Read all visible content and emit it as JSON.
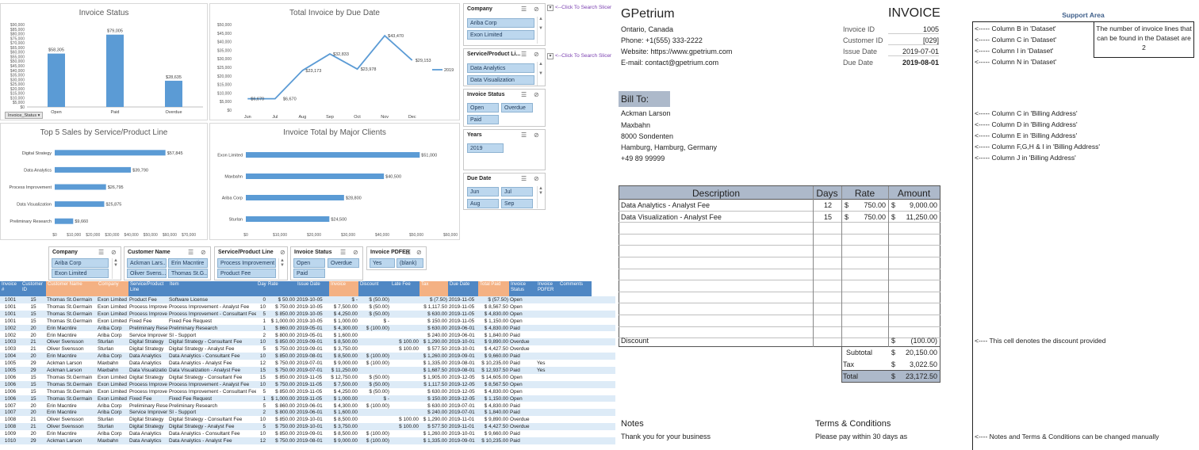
{
  "charts_panel": {
    "invoice_status": {
      "title": "Invoice Status",
      "filter_button": "Invoice_Status",
      "yticks": [
        "$0",
        "$5,000",
        "$10,000",
        "$15,000",
        "$20,000",
        "$25,000",
        "$30,000",
        "$35,000",
        "$40,000",
        "$45,000",
        "$50,000",
        "$55,000",
        "$60,000",
        "$65,000",
        "$70,000",
        "$75,000",
        "$80,000",
        "$85,000",
        "$90,000"
      ],
      "data_labels": [
        "$58,305",
        "$79,005",
        "$28,635"
      ],
      "categories": [
        "Open",
        "Paid",
        "Overdue"
      ]
    },
    "due_date": {
      "title": "Total Invoice by Due Date",
      "yticks": [
        "$0",
        "$5,000",
        "$10,000",
        "$15,000",
        "$20,000",
        "$25,000",
        "$30,000",
        "$35,000",
        "$40,000",
        "$45,000",
        "$50,000"
      ],
      "data_labels": [
        "$6,670",
        "$6,670",
        "$23,173",
        "$32,833",
        "$23,978",
        "$43,470",
        "$29,153"
      ],
      "categories": [
        "Jun",
        "Jul",
        "Aug",
        "Sep",
        "Oct",
        "Nov",
        "Dec"
      ],
      "legend": "2019"
    },
    "top5": {
      "title": "Top 5 Sales by Service/Product Line",
      "categories": [
        "Digital Strategy",
        "Data Analytics",
        "Process Improvement",
        "Data Visualization",
        "Preliminary Research"
      ],
      "data_labels": [
        "$57,845",
        "$39,790",
        "$26,795",
        "$25,875",
        "$9,660"
      ],
      "xticks": [
        "$0",
        "$10,000",
        "$20,000",
        "$30,000",
        "$40,000",
        "$50,000",
        "$60,000",
        "$70,000"
      ]
    },
    "clients": {
      "title": "Invoice Total by Major Clients",
      "categories": [
        "Exon Limited",
        "Maxbahn",
        "Ariba Corp",
        "Sturlan"
      ],
      "data_labels": [
        "$51,000",
        "$40,500",
        "$28,800",
        "$24,500"
      ],
      "xticks": [
        "$0",
        "$10,000",
        "$20,000",
        "$30,000",
        "$40,000",
        "$50,000",
        "$60,000"
      ]
    }
  },
  "chart_data": [
    {
      "type": "bar",
      "title": "Invoice Status",
      "categories": [
        "Open",
        "Paid",
        "Overdue"
      ],
      "values": [
        58305,
        79005,
        28635
      ],
      "ylim": [
        0,
        90000
      ],
      "xlabel": "",
      "ylabel": ""
    },
    {
      "type": "line",
      "title": "Total Invoice by Due Date",
      "categories": [
        "Jun",
        "Jul",
        "Aug",
        "Sep",
        "Oct",
        "Nov",
        "Dec"
      ],
      "series": [
        {
          "name": "2019",
          "values": [
            6670,
            6670,
            23173,
            32833,
            23978,
            43470,
            29153
          ]
        }
      ],
      "ylim": [
        0,
        50000
      ],
      "legend": "right"
    },
    {
      "type": "bar",
      "orientation": "horizontal",
      "title": "Top 5 Sales by Service/Product Line",
      "categories": [
        "Digital Strategy",
        "Data Analytics",
        "Process Improvement",
        "Data Visualization",
        "Preliminary Research"
      ],
      "values": [
        57845,
        39790,
        26795,
        25875,
        9660
      ],
      "xlim": [
        0,
        70000
      ]
    },
    {
      "type": "bar",
      "orientation": "horizontal",
      "title": "Invoice Total by Major Clients",
      "categories": [
        "Exon Limited",
        "Maxbahn",
        "Ariba Corp",
        "Sturlan"
      ],
      "values": [
        51000,
        40500,
        28800,
        24500
      ],
      "xlim": [
        0,
        60000
      ]
    }
  ],
  "right_slicers": {
    "company": {
      "title": "Company",
      "items": [
        "Ariba Corp",
        "Exon Limited"
      ]
    },
    "service": {
      "title": "Service/Product Li...",
      "items": [
        "Data Analytics",
        "Data Visualization"
      ]
    },
    "status": {
      "title": "Invoice Status",
      "items": [
        "Open",
        "Overdue",
        "Paid"
      ]
    },
    "years": {
      "title": "Years",
      "items": [
        "2019"
      ]
    },
    "due": {
      "title": "Due Date",
      "items": [
        "Jun",
        "Jul",
        "Aug",
        "Sep"
      ]
    },
    "hint1": "<--Click To Search Slicer",
    "hint2": "<--Click To Search Slicer"
  },
  "table_slicers": {
    "company": {
      "title": "Company",
      "items": [
        "Ariba Corp",
        "Exon Limited"
      ]
    },
    "customer": {
      "title": "Customer Name",
      "items": [
        "Ackman Lars...",
        "Erin Macntire",
        "Oliver Svens...",
        "Thomas St.G..."
      ]
    },
    "service": {
      "title": "Service/Product Line",
      "items": [
        "Process Improvement",
        "Product Fee"
      ]
    },
    "status": {
      "title": "Invoice Status",
      "items": [
        "Open",
        "Overdue",
        "Paid"
      ]
    },
    "pdfer": {
      "title": "Invoice PDFER",
      "items": [
        "Yes",
        "(blank)"
      ]
    }
  },
  "table": {
    "headers": [
      "Invoice #",
      "Customer ID",
      "Customer Name",
      "Company",
      "Service/Product Line",
      "Item",
      "Days",
      "Rate",
      "Issue Date",
      "Invoice",
      "Discount",
      "Late Fee",
      "Tax",
      "Due Date",
      "Total Paid",
      "Invoice Status",
      "Invoice PDFER",
      "Comments"
    ],
    "rows": [
      [
        "1001",
        "15",
        "Thomas St.Germain",
        "Exon Limited",
        "Product Fee",
        "Software License",
        "0",
        "$ 50.00",
        "2019-10-05",
        "$ -",
        "$ (50.00)",
        "",
        "$ (7.50)",
        "2019-11-05",
        "$ (57.50)",
        "Open",
        "",
        ""
      ],
      [
        "1001",
        "15",
        "Thomas St.Germain",
        "Exon Limited",
        "Process Improve",
        "Process Improvement - Analyst Fee",
        "10",
        "$ 750.00",
        "2019-10-05",
        "$ 7,500.00",
        "$ (50.00)",
        "",
        "$ 1,117.50",
        "2019-11-05",
        "$ 8,567.50",
        "Open",
        "",
        ""
      ],
      [
        "1001",
        "15",
        "Thomas St.Germain",
        "Exon Limited",
        "Process Improve",
        "Process Improvement - Consultant Fee",
        "5",
        "$ 850.00",
        "2019-10-05",
        "$ 4,250.00",
        "$ (50.00)",
        "",
        "$ 630.00",
        "2019-11-05",
        "$ 4,830.00",
        "Open",
        "",
        ""
      ],
      [
        "1001",
        "15",
        "Thomas St.Germain",
        "Exon Limited",
        "Fixed Fee",
        "Fixed Fee Request",
        "1",
        "$ 1,000.00",
        "2019-10-05",
        "$ 1,000.00",
        "$ -",
        "",
        "$ 150.00",
        "2019-11-05",
        "$ 1,150.00",
        "Open",
        "",
        ""
      ],
      [
        "1002",
        "20",
        "Erin Macntire",
        "Ariba Corp",
        "Preliminary Rese",
        "Preliminary Research",
        "1",
        "$ 860.00",
        "2019-05-01",
        "$ 4,300.00",
        "$ (100.00)",
        "",
        "$ 630.00",
        "2019-06-01",
        "$ 4,830.00",
        "Paid",
        "",
        ""
      ],
      [
        "1002",
        "20",
        "Erin Macntire",
        "Ariba Corp",
        "Service Improver",
        "SI - Support",
        "2",
        "$ 800.00",
        "2019-05-01",
        "$ 1,600.00",
        "",
        "",
        "$ 240.00",
        "2019-06-01",
        "$ 1,840.00",
        "Paid",
        "",
        ""
      ],
      [
        "1003",
        "21",
        "Oliver Svensson",
        "Sturlan",
        "Digital Strategy",
        "Digital Strategy - Consultant Fee",
        "10",
        "$ 850.00",
        "2019-09-01",
        "$ 8,500.00",
        "",
        "$ 100.00",
        "$ 1,290.00",
        "2019-10-01",
        "$ 9,890.00",
        "Overdue",
        "",
        ""
      ],
      [
        "1003",
        "21",
        "Oliver Svensson",
        "Sturlan",
        "Digital Strategy",
        "Digital Strategy - Analyst Fee",
        "5",
        "$ 750.00",
        "2019-09-01",
        "$ 3,750.00",
        "",
        "$ 100.00",
        "$ 577.50",
        "2019-10-01",
        "$ 4,427.50",
        "Overdue",
        "",
        ""
      ],
      [
        "1004",
        "20",
        "Erin Macntire",
        "Ariba Corp",
        "Data Analytics",
        "Data Analytics - Consultant Fee",
        "10",
        "$ 850.00",
        "2019-08-01",
        "$ 8,500.00",
        "$ (100.00)",
        "",
        "$ 1,260.00",
        "2019-09-01",
        "$ 9,660.00",
        "Paid",
        "",
        ""
      ],
      [
        "1005",
        "29",
        "Ackman Larson",
        "Maxbahn",
        "Data Analytics",
        "Data Analytics - Analyst Fee",
        "12",
        "$ 750.00",
        "2019-07-01",
        "$ 9,000.00",
        "$ (100.00)",
        "",
        "$ 1,335.00",
        "2019-08-01",
        "$ 10,235.00",
        "Paid",
        "Yes",
        ""
      ],
      [
        "1005",
        "29",
        "Ackman Larson",
        "Maxbahn",
        "Data Visualizatio",
        "Data Visualization - Analyst Fee",
        "15",
        "$ 750.00",
        "2019-07-01",
        "$ 11,250.00",
        "",
        "",
        "$ 1,687.50",
        "2019-08-01",
        "$ 12,937.50",
        "Paid",
        "Yes",
        ""
      ],
      [
        "1006",
        "15",
        "Thomas St.Germain",
        "Exon Limited",
        "Digital Strategy",
        "Digital Strategy - Consultant Fee",
        "15",
        "$ 850.00",
        "2019-11-05",
        "$ 12,750.00",
        "$ (50.00)",
        "",
        "$ 1,905.00",
        "2019-12-05",
        "$ 14,605.00",
        "Open",
        "",
        ""
      ],
      [
        "1006",
        "15",
        "Thomas St.Germain",
        "Exon Limited",
        "Process Improve",
        "Process Improvement - Analyst Fee",
        "10",
        "$ 750.00",
        "2019-11-05",
        "$ 7,500.00",
        "$ (50.00)",
        "",
        "$ 1,117.50",
        "2019-12-05",
        "$ 8,567.50",
        "Open",
        "",
        ""
      ],
      [
        "1006",
        "15",
        "Thomas St.Germain",
        "Exon Limited",
        "Process Improve",
        "Process Improvement - Consultant Fee",
        "5",
        "$ 850.00",
        "2019-11-05",
        "$ 4,250.00",
        "$ (50.00)",
        "",
        "$ 630.00",
        "2019-12-05",
        "$ 4,830.00",
        "Open",
        "",
        ""
      ],
      [
        "1006",
        "15",
        "Thomas St.Germain",
        "Exon Limited",
        "Fixed Fee",
        "Fixed Fee Request",
        "1",
        "$ 1,000.00",
        "2019-11-05",
        "$ 1,000.00",
        "$ -",
        "",
        "$ 150.00",
        "2019-12-05",
        "$ 1,150.00",
        "Open",
        "",
        ""
      ],
      [
        "1007",
        "20",
        "Erin Macntire",
        "Ariba Corp",
        "Preliminary Rese",
        "Preliminary Research",
        "5",
        "$ 860.00",
        "2019-06-01",
        "$ 4,300.00",
        "$ (100.00)",
        "",
        "$ 630.00",
        "2019-07-01",
        "$ 4,830.00",
        "Paid",
        "",
        ""
      ],
      [
        "1007",
        "20",
        "Erin Macntire",
        "Ariba Corp",
        "Service Improver",
        "SI - Support",
        "2",
        "$ 800.00",
        "2019-06-01",
        "$ 1,600.00",
        "",
        "",
        "$ 240.00",
        "2019-07-01",
        "$ 1,840.00",
        "Paid",
        "",
        ""
      ],
      [
        "1008",
        "21",
        "Oliver Svensson",
        "Sturlan",
        "Digital Strategy",
        "Digital Strategy - Consultant Fee",
        "10",
        "$ 850.00",
        "2019-10-01",
        "$ 8,500.00",
        "",
        "$ 100.00",
        "$ 1,290.00",
        "2019-11-01",
        "$ 9,890.00",
        "Overdue",
        "",
        ""
      ],
      [
        "1008",
        "21",
        "Oliver Svensson",
        "Sturlan",
        "Digital Strategy",
        "Digital Strategy - Analyst Fee",
        "5",
        "$ 750.00",
        "2019-10-01",
        "$ 3,750.00",
        "",
        "$ 100.00",
        "$ 577.50",
        "2019-11-01",
        "$ 4,427.50",
        "Overdue",
        "",
        ""
      ],
      [
        "1009",
        "20",
        "Erin Macntire",
        "Ariba Corp",
        "Data Analytics",
        "Data Analytics - Consultant Fee",
        "10",
        "$ 850.00",
        "2019-09-01",
        "$ 8,500.00",
        "$ (100.00)",
        "",
        "$ 1,260.00",
        "2019-10-01",
        "$ 9,660.00",
        "Paid",
        "",
        ""
      ],
      [
        "1010",
        "29",
        "Ackman Larson",
        "Maxbahn",
        "Data Analytics",
        "Data Analytics - Analyst Fee",
        "12",
        "$ 750.00",
        "2019-08-01",
        "$ 9,000.00",
        "$ (100.00)",
        "",
        "$ 1,335.00",
        "2019-09-01",
        "$ 10,235.00",
        "Paid",
        "",
        ""
      ]
    ]
  },
  "invoice": {
    "company": "GPetrium",
    "heading": "INVOICE",
    "address": "Ontario, Canada",
    "phone": "Phone: +1(555) 333-2222",
    "website": "Website: https://www.gpetrium.com",
    "email": "E-mail: contact@gpetrium.com",
    "meta": [
      {
        "label": "Invoice ID",
        "value": "1005"
      },
      {
        "label": "Customer ID",
        "value": "[029]"
      },
      {
        "label": "Issue Date",
        "value": "2019-07-01"
      },
      {
        "label": "Due Date",
        "value": "2019-08-01"
      }
    ],
    "bill_to_label": "Bill To:",
    "bill_to": [
      "Ackman Larson",
      "Maxbahn",
      "8000 Sondenten",
      "Hamburg, Hamburg, Germany",
      "+49 89 99999"
    ],
    "columns": [
      "Description",
      "Days",
      "Rate",
      "Amount"
    ],
    "lines": [
      {
        "desc": "Data Analytics - Analyst Fee",
        "days": "12",
        "rate_sym": "$",
        "rate": "750.00",
        "amt_sym": "$",
        "amt": "9,000.00"
      },
      {
        "desc": "Data Visualization - Analyst Fee",
        "days": "15",
        "rate_sym": "$",
        "rate": "750.00",
        "amt_sym": "$",
        "amt": "11,250.00"
      }
    ],
    "discount_label": "Discount",
    "discount_sym": "$",
    "discount_value": "(100.00)",
    "subtotal_label": "Subtotal",
    "subtotal_sym": "$",
    "subtotal": "20,150.00",
    "tax_label": "Tax",
    "tax_sym": "$",
    "tax": "3,022.50",
    "total_label": "Total",
    "total_sym": "$",
    "total": "23,172.50",
    "notes_title": "Notes",
    "notes_text": "Thank you for your business",
    "terms_title": "Terms & Conditions",
    "terms_text": "Please pay within 30 days as"
  },
  "support": {
    "title": "Support Area",
    "col_notes": [
      "<----- Column B in 'Dataset'",
      "<----- Column C in 'Dataset'",
      "<----- Column I in 'Dataset'",
      "<----- Column N in 'Dataset'"
    ],
    "lines_note": "The number of invoice lines that can be found in the Dataset are 2",
    "addr_notes": [
      "<----- Column C in 'Billing Address'",
      "<----- Column D in 'Billing Address'",
      "<----- Column E in 'Billing Address'",
      "<----- Column F,G,H & I in 'Billing Address'",
      "<----- Column J in 'Billing Address'"
    ],
    "discount_note": "<---- This cell denotes the discount provided",
    "notes_note": "<---- Notes and Terms & Conditions can be changed manually"
  },
  "colors": {
    "bar": "#5b9bd5",
    "header_blue": "#4f87c4",
    "header_orange": "#f4b183",
    "band": "#ddebf7",
    "desc_header": "#adb9ca",
    "bill_to_bg": "#adb9ca"
  }
}
